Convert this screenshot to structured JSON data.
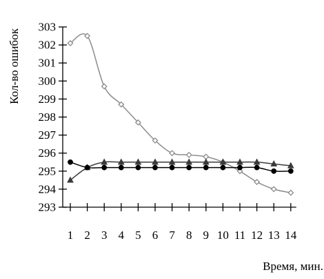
{
  "chart_data": {
    "type": "line",
    "title": "",
    "xlabel": "Время, мин.",
    "ylabel": "Кол-во ошибок",
    "x": [
      1,
      2,
      3,
      4,
      5,
      6,
      7,
      8,
      9,
      10,
      11,
      12,
      13,
      14
    ],
    "x_tick_labels": [
      "1",
      "2",
      "3",
      "4",
      "5",
      "6",
      "7",
      "8",
      "9",
      "10",
      "11",
      "12",
      "13",
      "14"
    ],
    "ylim": [
      293,
      303
    ],
    "y_ticks": [
      "293",
      "294",
      "295",
      "296",
      "297",
      "298",
      "299",
      "300",
      "301",
      "302",
      "303"
    ],
    "grid": false,
    "legend": "none",
    "series": [
      {
        "marker": "diamond",
        "color": "#8c8c8c",
        "smooth": true,
        "values": [
          302.1,
          302.5,
          299.7,
          298.7,
          297.7,
          296.7,
          296.0,
          295.9,
          295.8,
          295.5,
          295.0,
          294.4,
          294.0,
          293.8
        ]
      },
      {
        "marker": "triangle",
        "color": "#3a3a3a",
        "smooth": true,
        "values": [
          294.5,
          295.2,
          295.5,
          295.5,
          295.5,
          295.5,
          295.5,
          295.5,
          295.5,
          295.5,
          295.5,
          295.5,
          295.4,
          295.3
        ]
      },
      {
        "marker": "circle",
        "color": "#000000",
        "smooth": true,
        "values": [
          295.5,
          295.2,
          295.2,
          295.2,
          295.2,
          295.2,
          295.2,
          295.2,
          295.2,
          295.2,
          295.2,
          295.2,
          295.0,
          295.0
        ]
      }
    ]
  }
}
